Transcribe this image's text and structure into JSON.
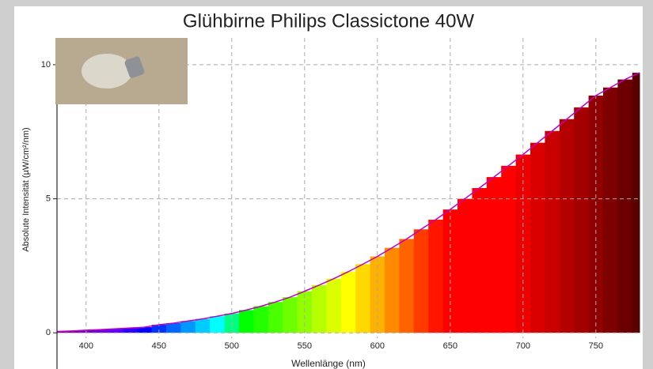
{
  "chart_data": {
    "type": "spectrum",
    "title": "Glühbirne Philips Classictone 40W",
    "x_label": "Wellenlänge (nm)",
    "y_label": "Absolute Intensität (µW/cm²/nm)",
    "x": [
      380,
      390,
      400,
      410,
      420,
      430,
      440,
      450,
      460,
      470,
      480,
      490,
      500,
      510,
      520,
      530,
      540,
      550,
      560,
      570,
      580,
      590,
      600,
      610,
      620,
      630,
      640,
      650,
      660,
      670,
      680,
      690,
      700,
      710,
      720,
      730,
      740,
      750,
      760,
      770,
      780
    ],
    "values": [
      0.05,
      0.07,
      0.1,
      0.12,
      0.15,
      0.18,
      0.21,
      0.3,
      0.36,
      0.44,
      0.52,
      0.62,
      0.72,
      0.85,
      0.99,
      1.15,
      1.33,
      1.55,
      1.78,
      2.02,
      2.28,
      2.56,
      2.85,
      3.17,
      3.5,
      3.86,
      4.22,
      4.6,
      5.0,
      5.4,
      5.81,
      6.23,
      6.65,
      7.09,
      7.53,
      7.97,
      8.41,
      8.85,
      9.15,
      9.45,
      9.7
    ],
    "line_color": "#c000c0",
    "xlim": [
      380,
      780
    ],
    "xticks": [
      400,
      450,
      500,
      550,
      600,
      650,
      700,
      750
    ],
    "ylim": [
      -0.2,
      11
    ],
    "yticks": [
      0,
      5,
      10
    ],
    "grid": true
  }
}
